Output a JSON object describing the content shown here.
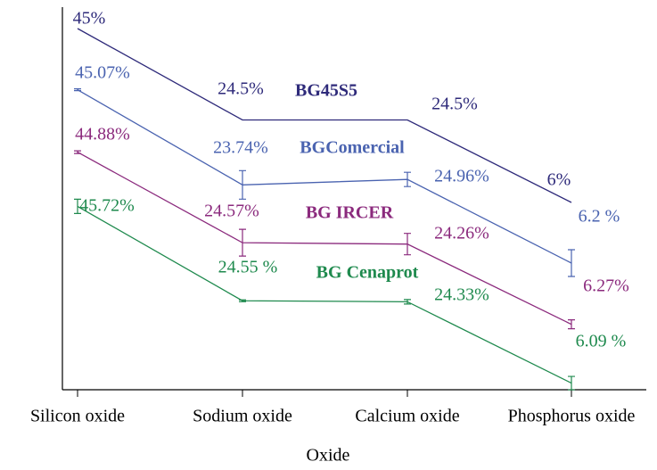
{
  "chart_data": {
    "type": "line",
    "xlabel": "Oxide",
    "categories": [
      "Silicon oxide",
      "Sodium oxide",
      "Calcium oxide",
      "Phosphorus oxide"
    ],
    "series": [
      {
        "name": "BG45S5",
        "color": "#2e2a7a",
        "values": [
          45,
          24.5,
          24.5,
          6
        ],
        "value_labels": [
          "45%",
          "24.5%",
          "24.5%",
          "6%"
        ]
      },
      {
        "name": "BGComercial",
        "color": "#4a63b0",
        "values": [
          45.07,
          23.74,
          24.96,
          6.2
        ],
        "value_labels": [
          "45.07%",
          "23.74%",
          "24.96%",
          "6.2 %"
        ],
        "errors": [
          0.2,
          3.2,
          1.6,
          3
        ]
      },
      {
        "name": "BG IRCER",
        "color": "#8b2a7d",
        "values": [
          44.88,
          24.57,
          24.26,
          6.27
        ],
        "value_labels": [
          "44.88%",
          "24.57%",
          "24.26%",
          "6.27%"
        ],
        "errors": [
          0.3,
          3,
          2.4,
          1
        ]
      },
      {
        "name": "BG Cenaprot",
        "color": "#1f8a4e",
        "values": [
          45.72,
          24.55,
          24.33,
          6.09
        ],
        "value_labels": [
          "45.72%",
          "24.55 %",
          "24.33%",
          "6.09 %"
        ],
        "errors": [
          1.6,
          0.2,
          0.5,
          1.5
        ]
      }
    ]
  }
}
